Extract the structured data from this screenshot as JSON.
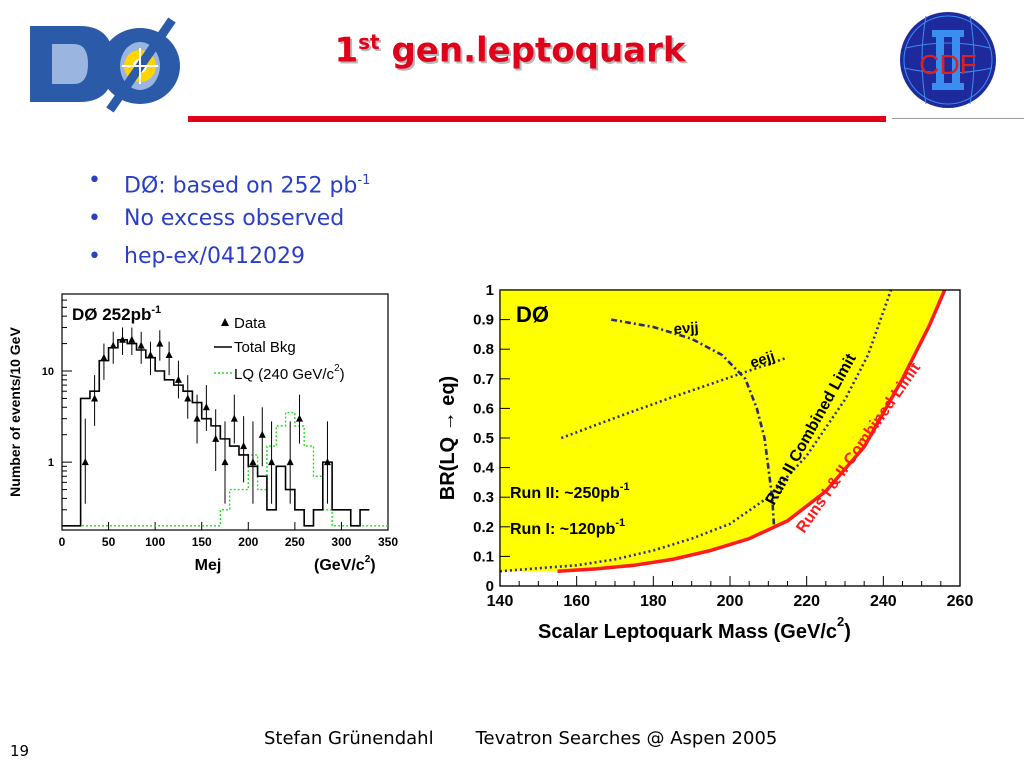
{
  "slide": {
    "title_main": "1",
    "title_sup": "st",
    "title_rest": " gen.leptoquark",
    "page_number": "19",
    "footer_author": "Stefan Grünendahl",
    "footer_event": "Tevatron Searches @ Aspen 2005"
  },
  "logos": {
    "left": {
      "text": "DØ",
      "icon": "dzero-logo-icon"
    },
    "right": {
      "text": "CDF",
      "icon": "cdf-logo-icon",
      "colors": {
        "ring": "#1e2a9c",
        "letters": "#e0201a",
        "bars": "#3a8ef0"
      }
    }
  },
  "bullets": [
    {
      "text": "DØ: based on 252 pb",
      "sup": "-1"
    },
    {
      "text": "No excess observed",
      "sup": ""
    },
    {
      "text": "hep-ex/0412029",
      "sup": ""
    }
  ],
  "chart_data": [
    {
      "type": "line",
      "title": "DØ  252pb",
      "title_sup": "-1",
      "xlabel": "Mej",
      "xunit": "(GeV/c",
      "xunit_sup": "2",
      "xunit_close": ")",
      "ylabel": "Number of events/10 GeV",
      "xlim": [
        0,
        350
      ],
      "ylim": [
        0.18,
        70
      ],
      "yscale": "log",
      "xticks": [
        0,
        50,
        100,
        150,
        200,
        250,
        300,
        350
      ],
      "yticks": [
        1,
        10
      ],
      "legend": [
        {
          "label": "Data",
          "marker": "triangle"
        },
        {
          "label": "Total Bkg",
          "style": "solid"
        },
        {
          "label": "LQ (240 GeV/c",
          "sup": "2",
          "close": ")",
          "style": "dotted-green"
        }
      ],
      "background_steps": {
        "edges": [
          0,
          10,
          20,
          30,
          40,
          50,
          60,
          70,
          80,
          90,
          100,
          110,
          120,
          130,
          140,
          150,
          160,
          170,
          180,
          190,
          200,
          210,
          220,
          230,
          240,
          250,
          260,
          270,
          280,
          290,
          300,
          310,
          320,
          330
        ],
        "values": [
          0.2,
          0.2,
          5,
          6,
          13,
          18,
          22,
          20,
          17,
          14,
          10,
          8,
          7,
          6,
          4.5,
          3,
          2.5,
          1.8,
          1.5,
          1.2,
          0.9,
          0.7,
          0.3,
          0.9,
          0.5,
          0.3,
          0.2,
          0.3,
          1,
          0.3,
          0.3,
          0.2,
          0.3
        ]
      },
      "lq_steps": {
        "edges": [
          0,
          150,
          160,
          170,
          180,
          190,
          200,
          210,
          220,
          230,
          240,
          250,
          260,
          270,
          280,
          290,
          300,
          310,
          350
        ],
        "values": [
          0.2,
          0.2,
          0.2,
          0.3,
          0.5,
          0.5,
          1.2,
          0.5,
          1.5,
          2.5,
          3.5,
          2.5,
          1.5,
          0.7,
          0.3,
          0.2,
          0.2,
          0.2
        ]
      },
      "data_points": [
        {
          "x": 25,
          "y": 1,
          "err": [
            0.35,
            3
          ]
        },
        {
          "x": 35,
          "y": 5,
          "err": [
            2.5,
            9
          ]
        },
        {
          "x": 45,
          "y": 14,
          "err": [
            8,
            20
          ]
        },
        {
          "x": 55,
          "y": 19,
          "err": [
            12,
            27
          ]
        },
        {
          "x": 65,
          "y": 22,
          "err": [
            15,
            30
          ]
        },
        {
          "x": 75,
          "y": 22,
          "err": [
            15,
            30
          ]
        },
        {
          "x": 85,
          "y": 19,
          "err": [
            12,
            27
          ]
        },
        {
          "x": 95,
          "y": 15,
          "err": [
            9,
            21
          ]
        },
        {
          "x": 105,
          "y": 20,
          "err": [
            13,
            28
          ]
        },
        {
          "x": 115,
          "y": 15,
          "err": [
            9,
            21
          ]
        },
        {
          "x": 125,
          "y": 8,
          "err": [
            5,
            13
          ]
        },
        {
          "x": 135,
          "y": 5,
          "err": [
            3,
            9
          ]
        },
        {
          "x": 145,
          "y": 3,
          "err": [
            1.6,
            5.5
          ]
        },
        {
          "x": 155,
          "y": 4,
          "err": [
            2.2,
            7
          ]
        },
        {
          "x": 165,
          "y": 1.8,
          "err": [
            0.8,
            3.8
          ]
        },
        {
          "x": 175,
          "y": 1,
          "err": [
            0.35,
            2.8
          ]
        },
        {
          "x": 185,
          "y": 3,
          "err": [
            1.6,
            5.5
          ]
        },
        {
          "x": 195,
          "y": 1.5,
          "err": [
            0.6,
            3.2
          ]
        },
        {
          "x": 205,
          "y": 1,
          "err": [
            0.35,
            2.8
          ]
        },
        {
          "x": 215,
          "y": 2,
          "err": [
            0.9,
            4
          ]
        },
        {
          "x": 225,
          "y": 1,
          "err": [
            0.35,
            2.8
          ]
        },
        {
          "x": 245,
          "y": 1,
          "err": [
            0.35,
            2.8
          ]
        },
        {
          "x": 255,
          "y": 3,
          "err": [
            1.6,
            5.5
          ]
        },
        {
          "x": 285,
          "y": 1,
          "err": [
            0.35,
            2.8
          ]
        }
      ]
    },
    {
      "type": "line",
      "title": "DØ",
      "xlabel": "Scalar Leptoquark Mass  (GeV/c",
      "xlabel_sup": "2",
      "xlabel_close": ")",
      "ylabel": "BR(LQ → eq)",
      "xlim": [
        140,
        260
      ],
      "ylim": [
        0,
        1
      ],
      "xticks": [
        140,
        160,
        180,
        200,
        220,
        240,
        260
      ],
      "yticks": [
        0,
        0.1,
        0.2,
        0.3,
        0.4,
        0.5,
        0.6,
        0.7,
        0.8,
        0.9,
        1
      ],
      "annotations": [
        {
          "text": "Run II: ~250pb",
          "sup": "-1"
        },
        {
          "text": "Run I: ~120pb",
          "sup": "-1"
        }
      ],
      "fill_color": "#ffff00",
      "series": [
        {
          "name": "eνjj",
          "style": "dashdot",
          "color": "#2a2a7a",
          "points": [
            [
              169,
              0.9
            ],
            [
              180,
              0.875
            ],
            [
              190,
              0.835
            ],
            [
              198,
              0.78
            ],
            [
              204,
              0.7
            ],
            [
              207,
              0.6
            ],
            [
              209,
              0.5
            ],
            [
              210,
              0.4
            ],
            [
              211,
              0.3
            ],
            [
              211.5,
              0.2
            ]
          ]
        },
        {
          "name": "eejj",
          "style": "dotted",
          "color": "#2a2a7a",
          "points": [
            [
              156,
              0.5
            ],
            [
              170,
              0.568
            ],
            [
              185,
              0.638
            ],
            [
              200,
              0.705
            ],
            [
              215,
              0.772
            ]
          ]
        },
        {
          "name": "Run II Combined Limit",
          "style": "dotted",
          "color": "#2a2a9a",
          "points": [
            [
              140,
              0.05
            ],
            [
              150,
              0.06
            ],
            [
              160,
              0.07
            ],
            [
              170,
              0.09
            ],
            [
              180,
              0.12
            ],
            [
              190,
              0.16
            ],
            [
              200,
              0.21
            ],
            [
              210,
              0.3
            ],
            [
              220,
              0.44
            ],
            [
              230,
              0.63
            ],
            [
              236,
              0.78
            ],
            [
              242,
              1.0
            ]
          ]
        },
        {
          "name": "Runs I & II Combined Limit",
          "style": "solid",
          "color": "#ff1a1a",
          "points": [
            [
              155,
              0.05
            ],
            [
              165,
              0.058
            ],
            [
              175,
              0.07
            ],
            [
              185,
              0.09
            ],
            [
              195,
              0.12
            ],
            [
              205,
              0.16
            ],
            [
              215,
              0.22
            ],
            [
              225,
              0.32
            ],
            [
              235,
              0.47
            ],
            [
              245,
              0.7
            ],
            [
              252,
              0.88
            ],
            [
              256,
              1.0
            ]
          ]
        }
      ]
    }
  ]
}
